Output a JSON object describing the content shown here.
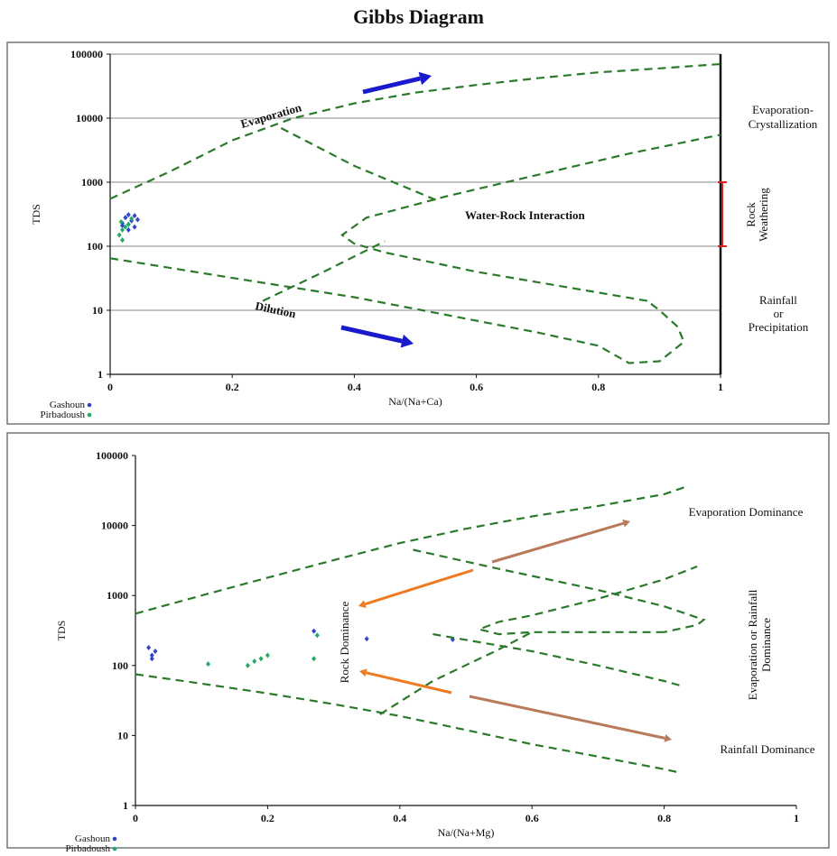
{
  "title": "Gibbs Diagram",
  "colors": {
    "gashoun": "#3344cc",
    "pirbadoush": "#22aa66",
    "boundary": "#2a7a2a",
    "arrow_blue": "#1a1acc",
    "arrow_orange": "#f07a20",
    "arrow_brown": "#b87a5a",
    "weathering_bar": "#e02020"
  },
  "legend": {
    "gashoun": "Gashoun",
    "pirbadoush": "Pirbadoush"
  },
  "chart_data": [
    {
      "type": "scatter",
      "title": "",
      "xlabel": "Na/(Na+Ca)",
      "ylabel": "TDS",
      "xlim": [
        0,
        1
      ],
      "ylim": [
        1,
        100000
      ],
      "yscale": "log",
      "grid": true,
      "x_ticks": [
        "0",
        "0.2",
        "0.4",
        "0.6",
        "0.8",
        "1"
      ],
      "y_ticks": [
        "1",
        "10",
        "100",
        "1000",
        "10000",
        "100000"
      ],
      "legend_position": "bottom-left",
      "series": [
        {
          "name": "Gashoun",
          "x": [
            0.02,
            0.025,
            0.03,
            0.03,
            0.035,
            0.04,
            0.04,
            0.045,
            0.03,
            0.02
          ],
          "y": [
            230,
            280,
            310,
            180,
            250,
            300,
            200,
            260,
            220,
            210
          ]
        },
        {
          "name": "Pirbadoush",
          "x": [
            0.015,
            0.02,
            0.02,
            0.025,
            0.03,
            0.035,
            0.018
          ],
          "y": [
            150,
            180,
            125,
            200,
            220,
            270,
            240
          ]
        }
      ],
      "annotations": {
        "evaporation": "Evaporation",
        "dilution": "Dilution",
        "water_rock": "Water-Rock Interaction",
        "right_top": [
          "Evaporation-",
          "Crystallization"
        ],
        "right_mid": [
          "Rock",
          "Weathering"
        ],
        "right_bottom": [
          "Rainfall",
          "or",
          "Precipitation"
        ]
      }
    },
    {
      "type": "scatter",
      "title": "",
      "xlabel": "Na/(Na+Mg)",
      "ylabel": "TDS",
      "xlim": [
        0,
        1
      ],
      "ylim": [
        1,
        100000
      ],
      "yscale": "log",
      "grid": false,
      "x_ticks": [
        "0",
        "0.2",
        "0.4",
        "0.6",
        "0.8",
        "1"
      ],
      "y_ticks": [
        "1",
        "10",
        "100",
        "1000",
        "10000",
        "100000"
      ],
      "legend_position": "bottom-left",
      "series": [
        {
          "name": "Gashoun",
          "x": [
            0.02,
            0.025,
            0.03,
            0.025,
            0.27,
            0.35,
            0.48
          ],
          "y": [
            180,
            140,
            160,
            125,
            310,
            240,
            235
          ]
        },
        {
          "name": "Pirbadoush",
          "x": [
            0.11,
            0.17,
            0.18,
            0.19,
            0.2,
            0.27,
            0.275
          ],
          "y": [
            105,
            100,
            115,
            125,
            140,
            125,
            270
          ]
        }
      ],
      "annotations": {
        "evap_dom": "Evaporation Dominance",
        "rock_dom": "Rock Dominance",
        "evap_rain": [
          "Evaporation or Rainfall",
          "Dominance"
        ],
        "rain_dom": "Rainfall Dominance"
      }
    }
  ]
}
